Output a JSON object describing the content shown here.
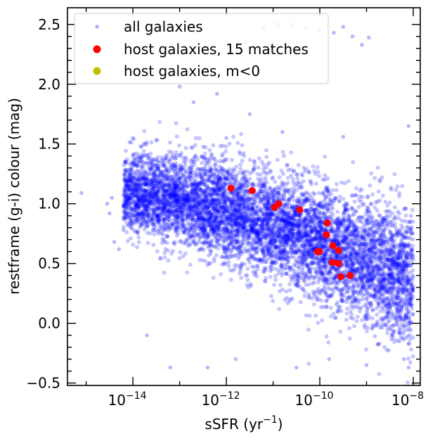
{
  "chart_data": {
    "type": "scatter",
    "title": "",
    "xlabel": "sSFR (yr⁻¹)",
    "ylabel": "restframe (g-i) colour (mag)",
    "x_scale": "log",
    "xlim_log10": [
      -15.4,
      -7.85
    ],
    "ylim": [
      -0.52,
      2.64
    ],
    "x_ticks": [
      {
        "log10": -14,
        "base": "10",
        "exp": "−14"
      },
      {
        "log10": -12,
        "base": "10",
        "exp": "−12"
      },
      {
        "log10": -10,
        "base": "10",
        "exp": "−10"
      },
      {
        "log10": -8,
        "base": "10",
        "exp": "−8"
      }
    ],
    "y_ticks": [
      {
        "value": -0.5,
        "label": "−0.5"
      },
      {
        "value": 0.0,
        "label": "0.0"
      },
      {
        "value": 0.5,
        "label": "0.5"
      },
      {
        "value": 1.0,
        "label": "1.0"
      },
      {
        "value": 1.5,
        "label": "1.5"
      },
      {
        "value": 2.0,
        "label": "2.0"
      },
      {
        "value": 2.5,
        "label": "2.5"
      }
    ],
    "grid": false,
    "legend_placement": "top-left",
    "series": [
      {
        "name": "all galaxies",
        "color": "#0000ff",
        "marker": "small translucent circle",
        "description_of_distribution": "dense cloud of tens of thousands of points spanning sSFR 1e-15 to 1e-8 yr^-1, colour -0.4 to 2.5 mag, red sequence near 1.0-1.1 mag at low sSFR, blue cloud near 0.3 mag at high sSFR",
        "points": [
          [
            -15.1,
            1.09
          ],
          [
            -14.55,
            1.0
          ],
          [
            -14.5,
            0.92
          ],
          [
            -14.45,
            1.05
          ],
          [
            -14.3,
            0.62
          ],
          [
            -14.2,
            0.78
          ],
          [
            -14.4,
            0.68
          ],
          [
            -13.9,
            0.88
          ],
          [
            -13.7,
            -0.1
          ],
          [
            -13.2,
            -0.37
          ],
          [
            -12.4,
            -0.37
          ],
          [
            -11.8,
            -0.3
          ],
          [
            -13.0,
            1.98
          ],
          [
            -12.7,
            1.85
          ],
          [
            -12.2,
            1.92
          ],
          [
            -11.6,
            2.35
          ],
          [
            -11.2,
            2.47
          ],
          [
            -10.9,
            2.5
          ],
          [
            -10.6,
            2.5
          ],
          [
            -10.3,
            2.47
          ],
          [
            -10.0,
            2.45
          ],
          [
            -9.7,
            2.43
          ],
          [
            -9.5,
            2.48
          ],
          [
            -9.3,
            2.4
          ],
          [
            -9.1,
            2.33
          ],
          [
            -8.95,
            2.39
          ],
          [
            -8.1,
            1.65
          ],
          [
            -8.05,
            0.78
          ],
          [
            -8.02,
            0.62
          ],
          [
            -10.5,
            -0.37
          ],
          [
            -9.8,
            -0.3
          ],
          [
            -9.0,
            -0.35
          ],
          [
            -8.2,
            -0.3
          ],
          [
            -8.1,
            -0.37
          ],
          [
            -8.3,
            -0.15
          ],
          [
            -11.5,
            1.75
          ],
          [
            -10.8,
            1.6
          ],
          [
            -12.0,
            1.55
          ],
          [
            -13.3,
            1.38
          ],
          [
            -9.5,
            1.56
          ]
        ]
      },
      {
        "name": "host galaxies, 15 matches",
        "color": "#ff0000",
        "marker": "large circle",
        "points": [
          [
            -11.9,
            1.13
          ],
          [
            -11.45,
            1.11
          ],
          [
            -10.97,
            0.97
          ],
          [
            -10.88,
            1.0
          ],
          [
            -10.43,
            0.95
          ],
          [
            -10.05,
            0.6
          ],
          [
            -10.01,
            0.6
          ],
          [
            -9.86,
            0.74
          ],
          [
            -9.84,
            0.84
          ],
          [
            -9.72,
            0.65
          ],
          [
            -9.73,
            0.51
          ],
          [
            -9.6,
            0.61
          ],
          [
            -9.6,
            0.5
          ],
          [
            -9.55,
            0.39
          ],
          [
            -9.35,
            0.4
          ]
        ]
      },
      {
        "name": "host galaxies, m<0",
        "color": "#bfbf00",
        "marker": "large circle",
        "points": []
      }
    ]
  }
}
